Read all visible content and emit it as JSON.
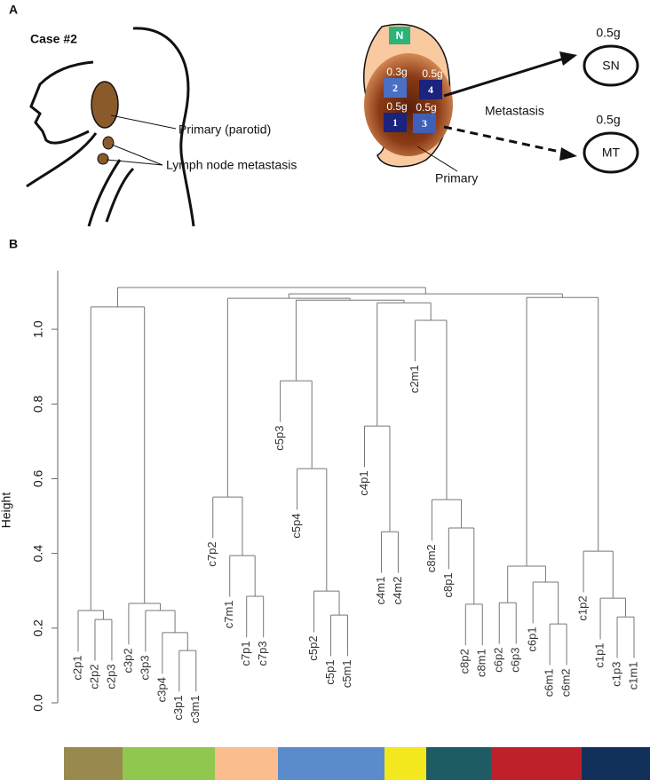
{
  "panel_a": {
    "label": "A",
    "case": "Case #2",
    "head_labels": {
      "primary": "Primary (parotid)",
      "lymph": "Lymph node metastasis"
    },
    "tumor": {
      "normal": "N",
      "samples": [
        {
          "id": "2",
          "weight": "0.3g"
        },
        {
          "id": "4",
          "weight": "0.5g"
        },
        {
          "id": "1",
          "weight": "0.5g"
        },
        {
          "id": "3",
          "weight": "0.5g"
        }
      ],
      "primary": "Primary",
      "metastasis": "Metastasis",
      "sites": [
        {
          "name": "SN",
          "weight": "0.5g"
        },
        {
          "name": "MT",
          "weight": "0.5g"
        }
      ]
    }
  },
  "panel_b": {
    "label": "B",
    "dendrogram": {
      "ylabel": "Height",
      "ylim": [
        0,
        1.157
      ],
      "yticks": [
        {
          "value": 0,
          "label": "0.0"
        },
        0.2,
        0.4,
        0.6,
        0.8,
        {
          "value": 1,
          "label": "1.0"
        }
      ],
      "tree": {
        "height": 1.112,
        "children": [
          {
            "height": 1.06,
            "children": [
              {
                "height": 0.247,
                "children": [
                  {
                    "label": "c2p1"
                  },
                  {
                    "height": 0.223,
                    "children": [
                      {
                        "label": "c2p2"
                      },
                      {
                        "label": "c2p3"
                      }
                    ]
                  }
                ]
              },
              {
                "height": 0.266,
                "children": [
                  {
                    "label": "c3p2"
                  },
                  {
                    "height": 0.247,
                    "children": [
                      {
                        "label": "c3p3"
                      },
                      {
                        "height": 0.188,
                        "children": [
                          {
                            "label": "c3p4"
                          },
                          {
                            "height": 0.14,
                            "children": [
                              {
                                "label": "c3p1"
                              },
                              {
                                "label": "c3m1"
                              }
                            ]
                          }
                        ]
                      }
                    ]
                  }
                ]
              }
            ]
          },
          {
            "height": 1.095,
            "children": [
              {
                "height": 1.083,
                "children": [
                  {
                    "height": 0.551,
                    "children": [
                      {
                        "label": "c7p2"
                      },
                      {
                        "height": 0.394,
                        "children": [
                          {
                            "label": "c7m1"
                          },
                          {
                            "height": 0.285,
                            "children": [
                              {
                                "label": "c7p1"
                              },
                              {
                                "label": "c7p3"
                              }
                            ]
                          }
                        ]
                      }
                    ]
                  },
                  {
                    "height": 1.078,
                    "children": [
                      {
                        "height": 0.862,
                        "children": [
                          {
                            "label": "c5p3"
                          },
                          {
                            "height": 0.627,
                            "children": [
                              {
                                "label": "c5p4"
                              },
                              {
                                "height": 0.299,
                                "children": [
                                  {
                                    "label": "c5p2"
                                  },
                                  {
                                    "height": 0.235,
                                    "children": [
                                      {
                                        "label": "c5p1"
                                      },
                                      {
                                        "label": "c5m1"
                                      }
                                    ]
                                  }
                                ]
                              }
                            ]
                          }
                        ]
                      },
                      {
                        "height": 1.071,
                        "children": [
                          {
                            "height": 0.741,
                            "children": [
                              {
                                "label": "c4p1"
                              },
                              {
                                "height": 0.458,
                                "children": [
                                  {
                                    "label": "c4m1"
                                  },
                                  {
                                    "label": "c4m2"
                                  }
                                ]
                              }
                            ]
                          },
                          {
                            "height": 1.024,
                            "children": [
                              {
                                "label": "c2m1"
                              },
                              {
                                "height": 0.544,
                                "children": [
                                  {
                                    "label": "c8m2"
                                  },
                                  {
                                    "height": 0.468,
                                    "children": [
                                      {
                                        "label": "c8p1"
                                      },
                                      {
                                        "height": 0.264,
                                        "children": [
                                          {
                                            "label": "c8p2"
                                          },
                                          {
                                            "label": "c8m1"
                                          }
                                        ]
                                      }
                                    ]
                                  }
                                ]
                              }
                            ]
                          }
                        ]
                      }
                    ]
                  }
                ]
              },
              {
                "height": 1.085,
                "children": [
                  {
                    "height": 0.366,
                    "children": [
                      {
                        "height": 0.268,
                        "children": [
                          {
                            "label": "c6p2"
                          },
                          {
                            "label": "c6p3"
                          }
                        ]
                      },
                      {
                        "height": 0.323,
                        "children": [
                          {
                            "label": "c6p1"
                          },
                          {
                            "height": 0.211,
                            "children": [
                              {
                                "label": "c6m1"
                              },
                              {
                                "label": "c6m2"
                              }
                            ]
                          }
                        ]
                      }
                    ]
                  },
                  {
                    "height": 0.406,
                    "children": [
                      {
                        "label": "c1p2"
                      },
                      {
                        "height": 0.28,
                        "children": [
                          {
                            "label": "c1p1"
                          },
                          {
                            "height": 0.23,
                            "children": [
                              {
                                "label": "c1p3"
                              },
                              {
                                "label": "c1m1"
                              }
                            ]
                          }
                        ]
                      }
                    ]
                  }
                ]
              }
            ]
          }
        ]
      }
    },
    "color_bar": [
      "#98894f",
      "#8fc74f",
      "#fbbd8d",
      "#5a8ccc",
      "#f2e81d",
      "#1f5b62",
      "#c0202a",
      "#12315a"
    ]
  }
}
